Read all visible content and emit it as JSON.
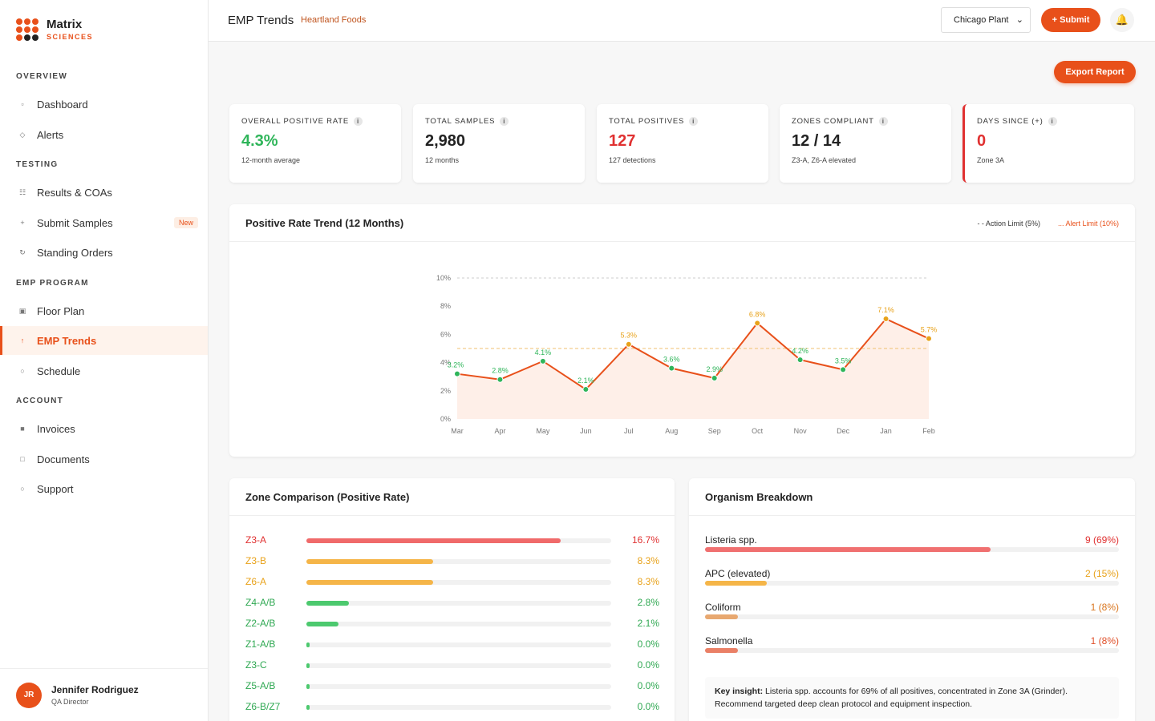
{
  "brand": {
    "name": "Matrix",
    "tagline": "SCIENCES",
    "color": "#e8501a"
  },
  "sidebar": {
    "sections": [
      {
        "title": "OVERVIEW"
      },
      {
        "title": "TESTING"
      },
      {
        "title": "EMP PROGRAM"
      },
      {
        "title": "ACCOUNT"
      }
    ],
    "items": [
      {
        "label": "Dashboard",
        "icon": "▫"
      },
      {
        "label": "Alerts",
        "icon": "◇"
      },
      {
        "label": "Results & COAs",
        "icon": "☷"
      },
      {
        "label": "Submit Samples",
        "icon": "+",
        "badge": "New"
      },
      {
        "label": "Standing Orders",
        "icon": "↻"
      },
      {
        "label": "Floor Plan",
        "icon": "▣"
      },
      {
        "label": "EMP Trends",
        "icon": "↑",
        "active": true
      },
      {
        "label": "Schedule",
        "icon": "○"
      },
      {
        "label": "Invoices",
        "icon": "■"
      },
      {
        "label": "Documents",
        "icon": "□"
      },
      {
        "label": "Support",
        "icon": "○"
      }
    ]
  },
  "user": {
    "initials": "JR",
    "name": "Jennifer Rodriguez",
    "role": "QA Director"
  },
  "header": {
    "title": "EMP Trends",
    "subtitle": "Heartland Foods",
    "plant": "Chicago Plant",
    "submit_label": "+ Submit",
    "bell_icon": "🔔"
  },
  "export_label": "Export Report",
  "kpis": [
    {
      "label": "OVERALL POSITIVE RATE",
      "value": "4.3%",
      "sub": "12-month average",
      "color": "#2fb55a"
    },
    {
      "label": "TOTAL SAMPLES",
      "value": "2,980",
      "sub": "12 months",
      "color": "#222222"
    },
    {
      "label": "TOTAL POSITIVES",
      "value": "127",
      "sub": "127 detections",
      "color": "#e03131"
    },
    {
      "label": "ZONES COMPLIANT",
      "value": "12 / 14",
      "sub": "Z3-A, Z6-A elevated",
      "color": "#222222"
    },
    {
      "label": "DAYS SINCE (+)",
      "value": "0",
      "sub": "Zone 3A",
      "color": "#e03131"
    }
  ],
  "trend": {
    "title": "Positive Rate Trend (12 Months)",
    "legend_action": "- - Action Limit (5%)",
    "legend_alert": "... Alert Limit (10%)"
  },
  "chart_data": {
    "type": "line",
    "categories": [
      "Mar",
      "Apr",
      "May",
      "Jun",
      "Jul",
      "Aug",
      "Sep",
      "Oct",
      "Nov",
      "Dec",
      "Jan",
      "Feb"
    ],
    "values": [
      3.2,
      2.8,
      4.1,
      2.1,
      5.3,
      3.6,
      2.9,
      6.8,
      4.2,
      3.5,
      7.1,
      5.7
    ],
    "point_labels": [
      "3.2%",
      "2.8%",
      "4.1%",
      "2.1%",
      "5.3%",
      "3.6%",
      "2.9%",
      "6.8%",
      "4.2%",
      "3.5%",
      "7.1%",
      "5.7%"
    ],
    "ylim": [
      0,
      10
    ],
    "yticks": [
      "0%",
      "2%",
      "4%",
      "6%",
      "8%",
      "10%"
    ],
    "action_limit": 5,
    "alert_limit": 10,
    "colors": {
      "line": "#e8501a",
      "below": "#2fb55a",
      "above": "#e8a21a",
      "area": "#fde8de"
    }
  },
  "zones": {
    "title": "Zone Comparison (Positive Rate)",
    "rows": [
      {
        "name": "Z3-A",
        "value": "16.7%",
        "fraction": 0.835,
        "color": "#f06a6a"
      },
      {
        "name": "Z3-B",
        "value": "8.3%",
        "fraction": 0.415,
        "color": "#f5b548"
      },
      {
        "name": "Z6-A",
        "value": "8.3%",
        "fraction": 0.415,
        "color": "#f5b548"
      },
      {
        "name": "Z4-A/B",
        "value": "2.8%",
        "fraction": 0.14,
        "color": "#4cc96e"
      },
      {
        "name": "Z2-A/B",
        "value": "2.1%",
        "fraction": 0.105,
        "color": "#4cc96e"
      },
      {
        "name": "Z1-A/B",
        "value": "0.0%",
        "fraction": 0.01,
        "color": "#4cc96e"
      },
      {
        "name": "Z3-C",
        "value": "0.0%",
        "fraction": 0.01,
        "color": "#4cc96e"
      },
      {
        "name": "Z5-A/B",
        "value": "0.0%",
        "fraction": 0.01,
        "color": "#4cc96e"
      },
      {
        "name": "Z6-B/Z7",
        "value": "0.0%",
        "fraction": 0.01,
        "color": "#4cc96e"
      }
    ]
  },
  "organisms": {
    "title": "Organism Breakdown",
    "rows": [
      {
        "name": "Listeria spp.",
        "value": "9 (69%)",
        "fraction": 0.69,
        "color": "#f07070",
        "text_color": "#e03131"
      },
      {
        "name": "APC (elevated)",
        "value": "2 (15%)",
        "fraction": 0.15,
        "color": "#f5b548",
        "text_color": "#e8a21a"
      },
      {
        "name": "Coliform",
        "value": "1 (8%)",
        "fraction": 0.08,
        "color": "#e8a870",
        "text_color": "#d9751e"
      },
      {
        "name": "Salmonella",
        "value": "1 (8%)",
        "fraction": 0.08,
        "color": "#ea8066",
        "text_color": "#e0502a"
      }
    ],
    "insight_label": "Key insight:",
    "insight_text": " Listeria spp. accounts for 69% of all positives, concentrated in Zone 3A (Grinder). Recommend targeted deep clean protocol and equipment inspection."
  }
}
